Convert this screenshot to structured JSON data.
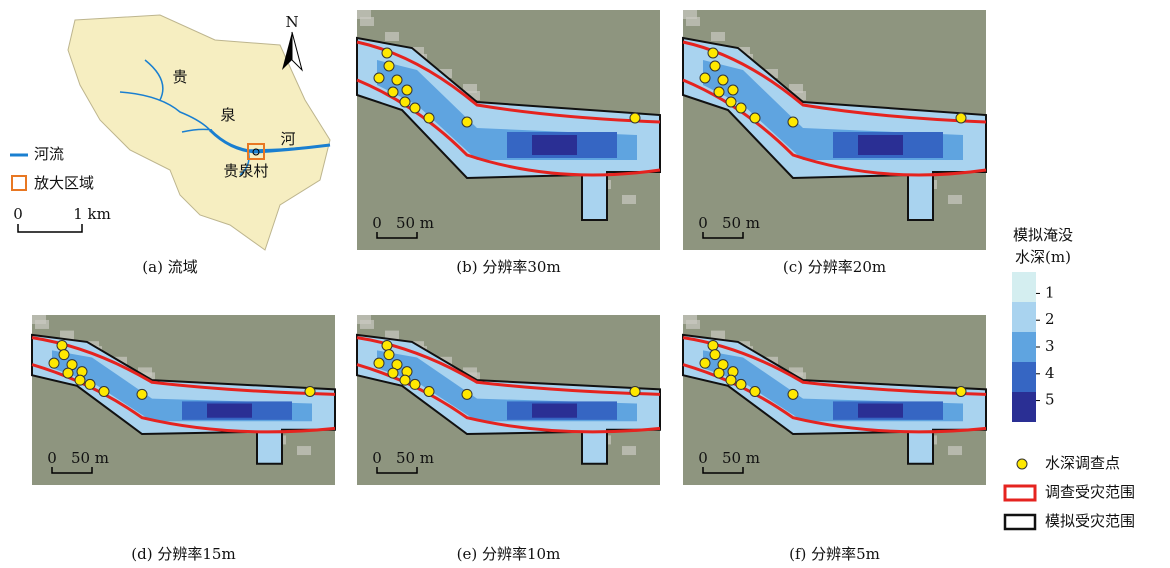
{
  "panels": [
    {
      "caption": "(a) 流域"
    },
    {
      "caption": "(b) 分辨率30m"
    },
    {
      "caption": "(c) 分辨率20m"
    },
    {
      "caption": "(d) 分辨率15m"
    },
    {
      "caption": "(e) 分辨率10m"
    },
    {
      "caption": "(f) 分辨率5m"
    }
  ],
  "watershed": {
    "labels": [
      "贵",
      "泉",
      "河",
      "贵泉村"
    ],
    "north": "N",
    "legend": [
      "河流",
      "放大区域"
    ],
    "scale": [
      "0",
      "1 km"
    ]
  },
  "scale_bar": [
    "0",
    "50 m"
  ],
  "depth_legend": {
    "title": [
      "模拟淹没",
      "水深(m)"
    ],
    "ticks": [
      1,
      2,
      3,
      4,
      5
    ],
    "colors": [
      "#d4eef0",
      "#a9d3ef",
      "#5fa4e0",
      "#3666c3",
      "#2a2f94"
    ]
  },
  "legend": [
    "水深调查点",
    "调查受灾范围",
    "模拟受灾范围"
  ]
}
